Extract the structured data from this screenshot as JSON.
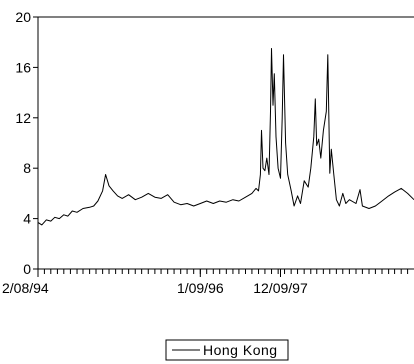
{
  "chart_data": {
    "type": "line",
    "title": "",
    "xlabel": "",
    "ylabel": "",
    "ylim": [
      0,
      20
    ],
    "xlim": [
      "1994-08-02",
      "1999-05-31"
    ],
    "grid": false,
    "legend_placement": "bottom-center",
    "y_ticks": [
      {
        "value": 0,
        "label": "0"
      },
      {
        "value": 4,
        "label": "4"
      },
      {
        "value": 8,
        "label": "8"
      },
      {
        "value": 12,
        "label": "12"
      },
      {
        "value": 16,
        "label": "16"
      },
      {
        "value": 20,
        "label": "20"
      }
    ],
    "x_ticks": [
      {
        "value": "1994-08-02",
        "label": "2/08/94"
      },
      {
        "value": "1996-09-01",
        "label": "1/09/96"
      },
      {
        "value": "1997-09-12",
        "label": "12/09/97"
      }
    ],
    "series": [
      {
        "name": "Hong Kong",
        "color": "#000000",
        "points": [
          [
            "1994-08-02",
            3.7
          ],
          [
            "1994-08-20",
            3.5
          ],
          [
            "1994-09-10",
            3.9
          ],
          [
            "1994-10-01",
            3.8
          ],
          [
            "1994-10-20",
            4.1
          ],
          [
            "1994-11-10",
            4.0
          ],
          [
            "1994-12-01",
            4.3
          ],
          [
            "1994-12-20",
            4.2
          ],
          [
            "1995-01-10",
            4.6
          ],
          [
            "1995-02-01",
            4.5
          ],
          [
            "1995-03-01",
            4.8
          ],
          [
            "1995-04-01",
            4.9
          ],
          [
            "1995-04-20",
            5.0
          ],
          [
            "1995-05-10",
            5.4
          ],
          [
            "1995-06-01",
            6.2
          ],
          [
            "1995-06-15",
            7.5
          ],
          [
            "1995-07-01",
            6.6
          ],
          [
            "1995-07-20",
            6.2
          ],
          [
            "1995-08-10",
            5.8
          ],
          [
            "1995-09-01",
            5.6
          ],
          [
            "1995-10-01",
            5.9
          ],
          [
            "1995-11-01",
            5.5
          ],
          [
            "1995-12-01",
            5.7
          ],
          [
            "1996-01-01",
            6.0
          ],
          [
            "1996-02-01",
            5.7
          ],
          [
            "1996-03-01",
            5.6
          ],
          [
            "1996-04-01",
            5.9
          ],
          [
            "1996-05-01",
            5.3
          ],
          [
            "1996-06-01",
            5.1
          ],
          [
            "1996-07-01",
            5.2
          ],
          [
            "1996-08-01",
            5.0
          ],
          [
            "1996-09-01",
            5.2
          ],
          [
            "1996-10-01",
            5.4
          ],
          [
            "1996-11-01",
            5.2
          ],
          [
            "1996-12-01",
            5.4
          ],
          [
            "1997-01-01",
            5.3
          ],
          [
            "1997-02-01",
            5.5
          ],
          [
            "1997-03-01",
            5.4
          ],
          [
            "1997-04-01",
            5.7
          ],
          [
            "1997-05-01",
            6.0
          ],
          [
            "1997-05-20",
            6.4
          ],
          [
            "1997-06-01",
            6.2
          ],
          [
            "1997-06-10",
            7.5
          ],
          [
            "1997-06-15",
            11.0
          ],
          [
            "1997-06-22",
            8.0
          ],
          [
            "1997-07-01",
            7.8
          ],
          [
            "1997-07-10",
            8.8
          ],
          [
            "1997-07-20",
            7.5
          ],
          [
            "1997-07-27",
            12.5
          ],
          [
            "1997-08-01",
            17.5
          ],
          [
            "1997-08-08",
            13.0
          ],
          [
            "1997-08-14",
            15.5
          ],
          [
            "1997-08-22",
            10.5
          ],
          [
            "1997-09-01",
            8.0
          ],
          [
            "1997-09-12",
            7.2
          ],
          [
            "1997-09-20",
            12.0
          ],
          [
            "1997-09-26",
            17.0
          ],
          [
            "1997-10-06",
            10.0
          ],
          [
            "1997-10-16",
            7.5
          ],
          [
            "1997-11-01",
            6.2
          ],
          [
            "1997-11-15",
            5.0
          ],
          [
            "1997-12-01",
            5.8
          ],
          [
            "1997-12-15",
            5.2
          ],
          [
            "1998-01-01",
            7.0
          ],
          [
            "1998-01-20",
            6.5
          ],
          [
            "1998-02-01",
            8.0
          ],
          [
            "1998-02-15",
            10.5
          ],
          [
            "1998-02-22",
            13.5
          ],
          [
            "1998-03-01",
            9.8
          ],
          [
            "1998-03-10",
            10.3
          ],
          [
            "1998-03-20",
            8.8
          ],
          [
            "1998-04-01",
            11.0
          ],
          [
            "1998-04-15",
            12.5
          ],
          [
            "1998-04-22",
            17.0
          ],
          [
            "1998-05-01",
            7.6
          ],
          [
            "1998-05-08",
            9.5
          ],
          [
            "1998-05-20",
            7.5
          ],
          [
            "1998-06-01",
            5.5
          ],
          [
            "1998-06-15",
            5.0
          ],
          [
            "1998-07-01",
            6.0
          ],
          [
            "1998-07-15",
            5.2
          ],
          [
            "1998-08-01",
            5.5
          ],
          [
            "1998-09-01",
            5.2
          ],
          [
            "1998-09-20",
            6.3
          ],
          [
            "1998-10-01",
            5.0
          ],
          [
            "1998-11-01",
            4.8
          ],
          [
            "1998-12-01",
            5.0
          ],
          [
            "1999-01-01",
            5.4
          ],
          [
            "1999-02-01",
            5.8
          ],
          [
            "1999-03-01",
            6.1
          ],
          [
            "1999-04-01",
            6.4
          ],
          [
            "1999-05-01",
            6.0
          ],
          [
            "1999-05-31",
            5.5
          ]
        ]
      }
    ]
  }
}
